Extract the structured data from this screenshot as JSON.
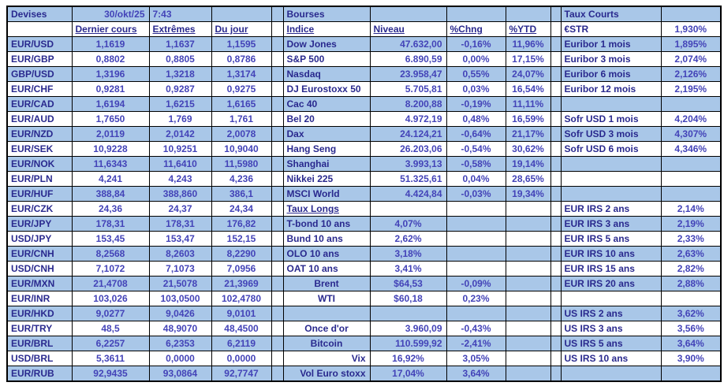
{
  "window": {
    "title_fx": "Devises",
    "date": "30/okt/25",
    "time": "7:43",
    "title_markets": "Bourses",
    "title_rates": "Taux Courts"
  },
  "colors": {
    "stripe_blue": "#a9c7e8",
    "label_text": "#29298e",
    "value_text": "#4343b8",
    "border": "#000000"
  },
  "fx": {
    "headers": [
      "Dernier cours",
      "Extrêmes",
      "Du jour"
    ],
    "rows": [
      [
        "EUR/USD",
        "1,1619",
        "1,1637",
        "1,1595"
      ],
      [
        "EUR/GBP",
        "0,8802",
        "0,8805",
        "0,8786"
      ],
      [
        "GBP/USD",
        "1,3196",
        "1,3218",
        "1,3174"
      ],
      [
        "EUR/CHF",
        "0,9281",
        "0,9287",
        "0,9275"
      ],
      [
        "EUR/CAD",
        "1,6194",
        "1,6215",
        "1,6165"
      ],
      [
        "EUR/AUD",
        "1,7650",
        "1,769",
        "1,761"
      ],
      [
        "EUR/NZD",
        "2,0119",
        "2,0142",
        "2,0078"
      ],
      [
        "EUR/SEK",
        "10,9228",
        "10,9251",
        "10,9040"
      ],
      [
        "EUR/NOK",
        "11,6343",
        "11,6410",
        "11,5980"
      ],
      [
        "EUR/PLN",
        "4,241",
        "4,243",
        "4,236"
      ],
      [
        "EUR/HUF",
        "388,84",
        "388,860",
        "386,1"
      ],
      [
        "EUR/CZK",
        "24,36",
        "24,37",
        "24,34"
      ],
      [
        "EUR/JPY",
        "178,31",
        "178,31",
        "176,82"
      ],
      [
        "USD/JPY",
        "153,45",
        "153,47",
        "152,15"
      ],
      [
        "EUR/CNH",
        "8,2568",
        "8,2603",
        "8,2290"
      ],
      [
        "USD/CNH",
        "7,1072",
        "7,1073",
        "7,0956"
      ],
      [
        "EUR/MXN",
        "21,4708",
        "21,5078",
        "21,3969"
      ],
      [
        "EUR/INR",
        "103,026",
        "103,0500",
        "102,4780"
      ],
      [
        "EUR/HKD",
        "9,0277",
        "9,0426",
        "9,0101"
      ],
      [
        "EUR/TRY",
        "48,5",
        "48,9070",
        "48,4500"
      ],
      [
        "EUR/BRL",
        "6,2257",
        "6,2353",
        "6,2119"
      ],
      [
        "USD/BRL",
        "5,3611",
        "0,0000",
        "0,0000"
      ],
      [
        "EUR/RUB",
        "92,9435",
        "93,0864",
        "92,7747"
      ]
    ]
  },
  "markets": {
    "headers": [
      "Indice",
      "Niveau",
      "%Chng",
      "%YTD"
    ],
    "rows": [
      [
        "Dow Jones",
        "47.632,00",
        "-0,16%",
        "11,96%",
        "l",
        "r"
      ],
      [
        "S&P 500",
        "6.890,59",
        "0,00%",
        "17,15%",
        "l",
        "r"
      ],
      [
        "Nasdaq",
        "23.958,47",
        "0,55%",
        "24,07%",
        "l",
        "r"
      ],
      [
        "DJ Eurostoxx 50",
        "5.705,81",
        "0,03%",
        "16,54%",
        "l",
        "r"
      ],
      [
        "Cac 40",
        "8.200,88",
        "-0,19%",
        "11,11%",
        "l",
        "r"
      ],
      [
        "Bel 20",
        "4.972,19",
        "0,48%",
        "16,59%",
        "l",
        "r"
      ],
      [
        "Dax",
        "24.124,21",
        "-0,64%",
        "21,17%",
        "l",
        "r"
      ],
      [
        "Hang Seng",
        "26.203,06",
        "-0,54%",
        "30,62%",
        "l",
        "r"
      ],
      [
        "Shanghai",
        "3.993,13",
        "-0,58%",
        "19,14%",
        "l",
        "r"
      ],
      [
        "Nikkei 225",
        "51.325,61",
        "0,04%",
        "28,65%",
        "l",
        "r"
      ],
      [
        "MSCI World",
        "4.424,84",
        "-0,03%",
        "19,34%",
        "l",
        "r"
      ],
      [
        "Taux Longs",
        "",
        "",
        "",
        "lu",
        "c"
      ],
      [
        "T-bond 10 ans",
        "4,07%",
        "",
        "",
        "l",
        "c"
      ],
      [
        "Bund 10 ans",
        "2,62%",
        "",
        "",
        "l",
        "c"
      ],
      [
        "OLO 10 ans",
        "3,18%",
        "",
        "",
        "l",
        "c"
      ],
      [
        "OAT 10 ans",
        "3,41%",
        "",
        "",
        "l",
        "c"
      ],
      [
        "Brent",
        "$64,53",
        "-0,09%",
        "",
        "c",
        "c"
      ],
      [
        "WTI",
        "$60,18",
        "0,23%",
        "",
        "c",
        "c"
      ],
      null,
      [
        "Once d'or",
        "3.960,09",
        "-0,43%",
        "",
        "c",
        "r"
      ],
      [
        "Bitcoin",
        "110.599,92",
        "-2,41%",
        "",
        "c",
        "r"
      ],
      [
        "Vix",
        "16,92%",
        "3,05%",
        "",
        "r",
        "c"
      ],
      [
        "Vol Euro stoxx",
        "17,04%",
        "3,64%",
        "",
        "r",
        "c"
      ]
    ]
  },
  "rates": {
    "estr_label": "€STR",
    "estr_value": "1,930%",
    "rows": [
      [
        "Euribor 1 mois",
        "1,895%"
      ],
      [
        "Euribor 3 mois",
        "2,074%"
      ],
      [
        "Euribor 6 mois",
        "2,126%"
      ],
      [
        "Euribor 12 mois",
        "2,195%"
      ],
      null,
      [
        "Sofr USD 1 mois",
        "4,204%"
      ],
      [
        "Sofr USD 3 mois",
        "4,307%"
      ],
      [
        "Sofr USD 6 mois",
        "4,346%"
      ],
      null,
      null,
      null,
      [
        "EUR IRS 2 ans",
        "2,14%"
      ],
      [
        "EUR IRS 3 ans",
        "2,19%"
      ],
      [
        "EUR IRS 5 ans",
        "2,33%"
      ],
      [
        "EUR IRS 10 ans",
        "2,63%"
      ],
      [
        "EUR IRS 15 ans",
        "2,82%"
      ],
      [
        "EUR IRS 20 ans",
        "2,88%"
      ],
      null,
      [
        "US IRS 2 ans",
        "3,62%"
      ],
      [
        "US IRS 3 ans",
        "3,56%"
      ],
      [
        "US IRS 5 ans",
        "3,64%"
      ],
      [
        "US IRS 10 ans",
        "3,90%"
      ],
      null
    ]
  }
}
